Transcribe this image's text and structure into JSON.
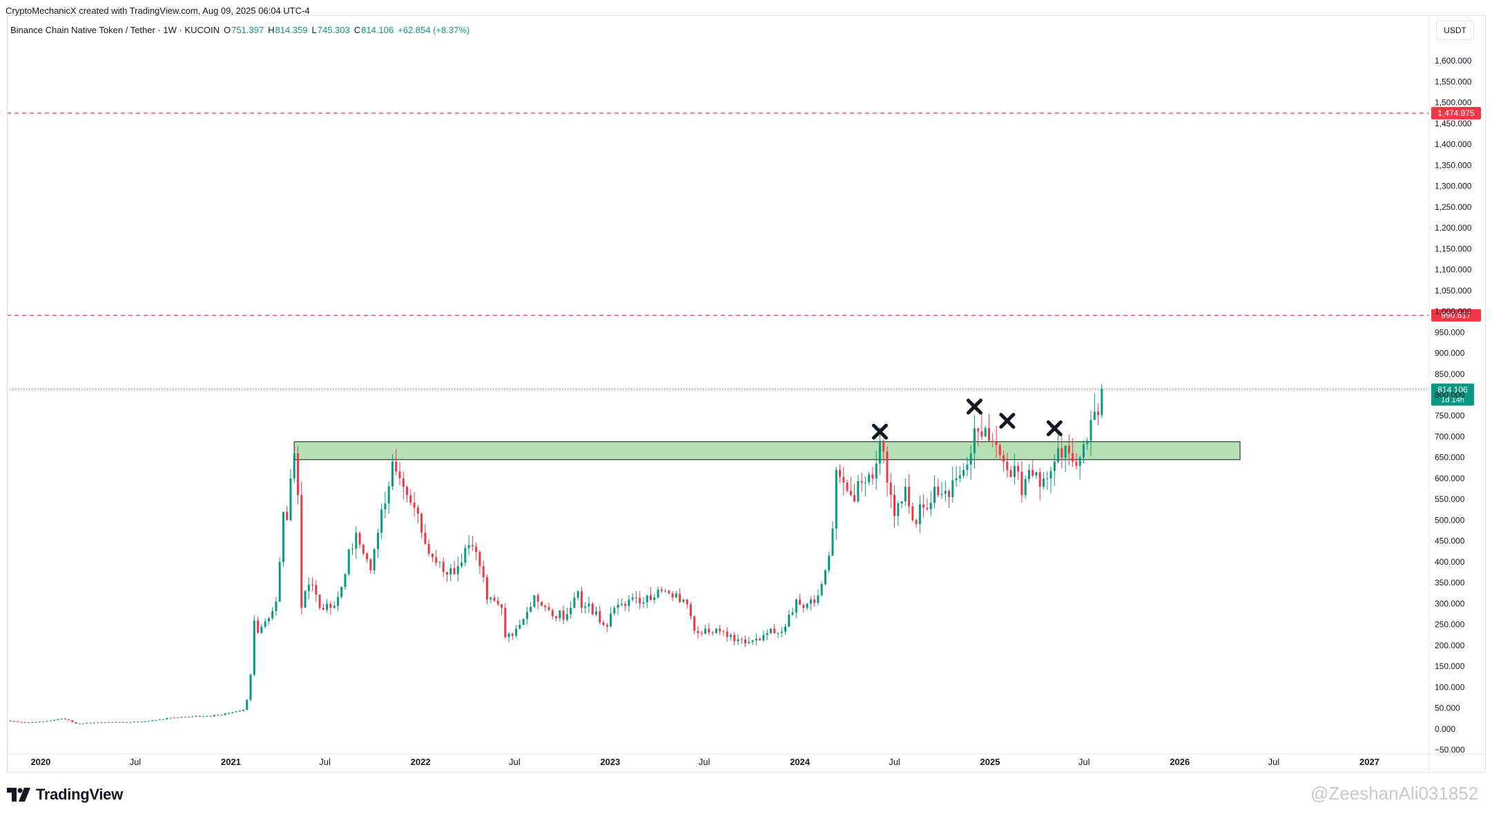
{
  "header": {
    "attribution": "CryptoMechanicX created with TradingView.com, Aug 09, 2025 06:04 UTC-4"
  },
  "symbol": {
    "description": "Binance Chain Native Token / Tether · 1W · KUCOIN",
    "open_label": "O",
    "open": "751.397",
    "high_label": "H",
    "high": "814.359",
    "low_label": "L",
    "low": "745.303",
    "close_label": "C",
    "close": "814.106",
    "change": "+62.854 (+8.37%)"
  },
  "price_scale": {
    "currency": "USDT"
  },
  "logo": {
    "text": "TradingView",
    "icon": "tradingview-logo-icon"
  },
  "watermark": "@ZeeshanAli031852",
  "colors": {
    "up": "#089981",
    "down": "#f23645",
    "zone_fill": "#b7dfb5",
    "zone_border": "#2e3b2e",
    "alert_line": "#f23645",
    "marker": "#131722"
  },
  "chart_data": {
    "type": "candlestick",
    "title": "Binance Chain Native Token / Tether · 1W · KUCOIN",
    "xlabel": "",
    "ylabel": "",
    "ylim": [
      -50,
      1650
    ],
    "y_ticks": [
      -50,
      0,
      50,
      100,
      150,
      200,
      250,
      300,
      350,
      400,
      450,
      500,
      550,
      600,
      650,
      700,
      750,
      800,
      850,
      900,
      950,
      1000,
      1050,
      1100,
      1150,
      1200,
      1250,
      1300,
      1350,
      1400,
      1450,
      1500,
      1550,
      1600
    ],
    "y_tick_labels": [
      "−50.000",
      "0.000",
      "50.000",
      "100.000",
      "150.000",
      "200.000",
      "250.000",
      "300.000",
      "350.000",
      "400.000",
      "450.000",
      "500.000",
      "550.000",
      "600.000",
      "650.000",
      "700.000",
      "750.000",
      "800.000",
      "850.000",
      "900.000",
      "950.000",
      "1,000.000",
      "1,050.000",
      "1,100.000",
      "1,150.000",
      "1,200.000",
      "1,250.000",
      "1,300.000",
      "1,350.000",
      "1,400.000",
      "1,450.000",
      "1,500.000",
      "1,550.000",
      "1,600.000"
    ],
    "x_ticks": [
      {
        "date": "2020-01-01",
        "label": "2020",
        "bold": true
      },
      {
        "date": "2020-07-01",
        "label": "Jul",
        "bold": false
      },
      {
        "date": "2021-01-01",
        "label": "2021",
        "bold": true
      },
      {
        "date": "2021-07-01",
        "label": "Jul",
        "bold": false
      },
      {
        "date": "2022-01-01",
        "label": "2022",
        "bold": true
      },
      {
        "date": "2022-07-01",
        "label": "Jul",
        "bold": false
      },
      {
        "date": "2023-01-01",
        "label": "2023",
        "bold": true
      },
      {
        "date": "2023-07-01",
        "label": "Jul",
        "bold": false
      },
      {
        "date": "2024-01-01",
        "label": "2024",
        "bold": true
      },
      {
        "date": "2024-07-01",
        "label": "Jul",
        "bold": false
      },
      {
        "date": "2025-01-01",
        "label": "2025",
        "bold": true
      },
      {
        "date": "2025-07-01",
        "label": "Jul",
        "bold": false
      },
      {
        "date": "2026-01-01",
        "label": "2026",
        "bold": true
      },
      {
        "date": "2026-07-01",
        "label": "Jul",
        "bold": false
      },
      {
        "date": "2027-01-01",
        "label": "2027",
        "bold": true
      }
    ],
    "x_range": [
      "2019-10-28",
      "2027-04-26"
    ],
    "horizontal_levels": [
      {
        "price": 1474.975,
        "label": "1,474.975",
        "style": "dashed"
      },
      {
        "price": 990.617,
        "label": "990.617",
        "style": "dashed"
      }
    ],
    "last_price": {
      "price": 814.106,
      "label": "814.106",
      "countdown": "1d 14h"
    },
    "resistance_zone": {
      "start": "2021-05-03",
      "end": "2026-04-27",
      "top": 688,
      "bottom": 645
    },
    "x_markers": [
      {
        "date": "2024-06-03",
        "price": 712
      },
      {
        "date": "2024-12-02",
        "price": 772
      },
      {
        "date": "2025-02-03",
        "price": 738
      },
      {
        "date": "2025-05-05",
        "price": 720
      }
    ],
    "weekly_closes": [
      {
        "date": "2019-10-28",
        "close": 19.8
      },
      {
        "date": "2019-12-02",
        "close": 15.3
      },
      {
        "date": "2020-01-06",
        "close": 17.4
      },
      {
        "date": "2020-02-10",
        "close": 24.5
      },
      {
        "date": "2020-02-24",
        "close": 21.0
      },
      {
        "date": "2020-03-09",
        "close": 12.5
      },
      {
        "date": "2020-04-06",
        "close": 14.8
      },
      {
        "date": "2020-05-11",
        "close": 16.3
      },
      {
        "date": "2020-06-15",
        "close": 15.9
      },
      {
        "date": "2020-07-20",
        "close": 18.0
      },
      {
        "date": "2020-08-17",
        "close": 22.7
      },
      {
        "date": "2020-09-14",
        "close": 27.4
      },
      {
        "date": "2020-10-19",
        "close": 30.2
      },
      {
        "date": "2020-11-16",
        "close": 30.8
      },
      {
        "date": "2020-12-14",
        "close": 33.9
      },
      {
        "date": "2020-12-28",
        "close": 38.1
      },
      {
        "date": "2021-01-11",
        "close": 42.0
      },
      {
        "date": "2021-01-25",
        "close": 46.0
      },
      {
        "date": "2021-02-01",
        "close": 70.0
      },
      {
        "date": "2021-02-08",
        "close": 130.0
      },
      {
        "date": "2021-02-15",
        "close": 260.0
      },
      {
        "date": "2021-02-22",
        "close": 230.0
      },
      {
        "date": "2021-03-01",
        "close": 245.0
      },
      {
        "date": "2021-03-15",
        "close": 265.0
      },
      {
        "date": "2021-03-29",
        "close": 305.0
      },
      {
        "date": "2021-04-05",
        "close": 400.0
      },
      {
        "date": "2021-04-12",
        "close": 520.0
      },
      {
        "date": "2021-04-19",
        "close": 500.0
      },
      {
        "date": "2021-04-26",
        "close": 600.0
      },
      {
        "date": "2021-05-03",
        "close": 660.0
      },
      {
        "date": "2021-05-10",
        "close": 560.0
      },
      {
        "date": "2021-05-17",
        "close": 290.0
      },
      {
        "date": "2021-05-24",
        "close": 330.0
      },
      {
        "date": "2021-06-07",
        "close": 345.0
      },
      {
        "date": "2021-06-21",
        "close": 290.0
      },
      {
        "date": "2021-07-05",
        "close": 300.0
      },
      {
        "date": "2021-07-19",
        "close": 295.0
      },
      {
        "date": "2021-08-02",
        "close": 340.0
      },
      {
        "date": "2021-08-16",
        "close": 430.0
      },
      {
        "date": "2021-08-30",
        "close": 470.0
      },
      {
        "date": "2021-09-13",
        "close": 420.0
      },
      {
        "date": "2021-09-27",
        "close": 380.0
      },
      {
        "date": "2021-10-11",
        "close": 470.0
      },
      {
        "date": "2021-10-25",
        "close": 540.0
      },
      {
        "date": "2021-11-08",
        "close": 640.0
      },
      {
        "date": "2021-11-22",
        "close": 600.0
      },
      {
        "date": "2021-12-06",
        "close": 560.0
      },
      {
        "date": "2021-12-20",
        "close": 530.0
      },
      {
        "date": "2022-01-03",
        "close": 470.0
      },
      {
        "date": "2022-01-17",
        "close": 420.0
      },
      {
        "date": "2022-02-07",
        "close": 400.0
      },
      {
        "date": "2022-02-21",
        "close": 370.0
      },
      {
        "date": "2022-03-14",
        "close": 390.0
      },
      {
        "date": "2022-04-04",
        "close": 440.0
      },
      {
        "date": "2022-04-25",
        "close": 390.0
      },
      {
        "date": "2022-05-09",
        "close": 310.0
      },
      {
        "date": "2022-06-06",
        "close": 290.0
      },
      {
        "date": "2022-06-13",
        "close": 220.0
      },
      {
        "date": "2022-07-04",
        "close": 240.0
      },
      {
        "date": "2022-07-25",
        "close": 280.0
      },
      {
        "date": "2022-08-08",
        "close": 320.0
      },
      {
        "date": "2022-08-22",
        "close": 295.0
      },
      {
        "date": "2022-09-12",
        "close": 270.0
      },
      {
        "date": "2022-10-10",
        "close": 275.0
      },
      {
        "date": "2022-10-31",
        "close": 330.0
      },
      {
        "date": "2022-11-07",
        "close": 290.0
      },
      {
        "date": "2022-11-21",
        "close": 300.0
      },
      {
        "date": "2022-12-12",
        "close": 255.0
      },
      {
        "date": "2022-12-26",
        "close": 245.0
      },
      {
        "date": "2023-01-09",
        "close": 290.0
      },
      {
        "date": "2023-02-06",
        "close": 310.0
      },
      {
        "date": "2023-02-27",
        "close": 300.0
      },
      {
        "date": "2023-03-13",
        "close": 320.0
      },
      {
        "date": "2023-04-10",
        "close": 330.0
      },
      {
        "date": "2023-05-01",
        "close": 315.0
      },
      {
        "date": "2023-05-22",
        "close": 310.0
      },
      {
        "date": "2023-06-05",
        "close": 270.0
      },
      {
        "date": "2023-06-12",
        "close": 235.0
      },
      {
        "date": "2023-07-03",
        "close": 240.0
      },
      {
        "date": "2023-07-24",
        "close": 240.0
      },
      {
        "date": "2023-08-14",
        "close": 220.0
      },
      {
        "date": "2023-09-04",
        "close": 215.0
      },
      {
        "date": "2023-10-02",
        "close": 212.0
      },
      {
        "date": "2023-10-23",
        "close": 225.0
      },
      {
        "date": "2023-11-06",
        "close": 240.0
      },
      {
        "date": "2023-11-20",
        "close": 230.0
      },
      {
        "date": "2023-12-04",
        "close": 245.0
      },
      {
        "date": "2023-12-25",
        "close": 310.0
      },
      {
        "date": "2024-01-15",
        "close": 300.0
      },
      {
        "date": "2024-02-05",
        "close": 320.0
      },
      {
        "date": "2024-02-19",
        "close": 380.0
      },
      {
        "date": "2024-03-04",
        "close": 480.0
      },
      {
        "date": "2024-03-11",
        "close": 620.0
      },
      {
        "date": "2024-03-25",
        "close": 590.0
      },
      {
        "date": "2024-04-08",
        "close": 560.0
      },
      {
        "date": "2024-04-29",
        "close": 590.0
      },
      {
        "date": "2024-05-20",
        "close": 600.0
      },
      {
        "date": "2024-06-03",
        "close": 690.0
      },
      {
        "date": "2024-06-17",
        "close": 590.0
      },
      {
        "date": "2024-07-01",
        "close": 510.0
      },
      {
        "date": "2024-07-22",
        "close": 580.0
      },
      {
        "date": "2024-08-05",
        "close": 500.0
      },
      {
        "date": "2024-08-26",
        "close": 530.0
      },
      {
        "date": "2024-09-16",
        "close": 580.0
      },
      {
        "date": "2024-10-07",
        "close": 570.0
      },
      {
        "date": "2024-10-28",
        "close": 600.0
      },
      {
        "date": "2024-11-11",
        "close": 620.0
      },
      {
        "date": "2024-11-25",
        "close": 660.0
      },
      {
        "date": "2024-12-02",
        "close": 720.0
      },
      {
        "date": "2024-12-16",
        "close": 700.0
      },
      {
        "date": "2024-12-30",
        "close": 690.0
      },
      {
        "date": "2025-01-13",
        "close": 680.0
      },
      {
        "date": "2025-01-27",
        "close": 640.0
      },
      {
        "date": "2025-02-03",
        "close": 620.0
      },
      {
        "date": "2025-02-17",
        "close": 630.0
      },
      {
        "date": "2025-03-03",
        "close": 560.0
      },
      {
        "date": "2025-03-17",
        "close": 620.0
      },
      {
        "date": "2025-04-07",
        "close": 580.0
      },
      {
        "date": "2025-04-21",
        "close": 600.0
      },
      {
        "date": "2025-05-05",
        "close": 640.0
      },
      {
        "date": "2025-05-19",
        "close": 650.0
      },
      {
        "date": "2025-06-02",
        "close": 660.0
      },
      {
        "date": "2025-06-16",
        "close": 630.0
      },
      {
        "date": "2025-07-07",
        "close": 690.0
      },
      {
        "date": "2025-07-14",
        "close": 740.0
      },
      {
        "date": "2025-07-21",
        "close": 760.0
      },
      {
        "date": "2025-07-28",
        "close": 751.4
      },
      {
        "date": "2025-08-04",
        "close": 814.106
      }
    ]
  }
}
